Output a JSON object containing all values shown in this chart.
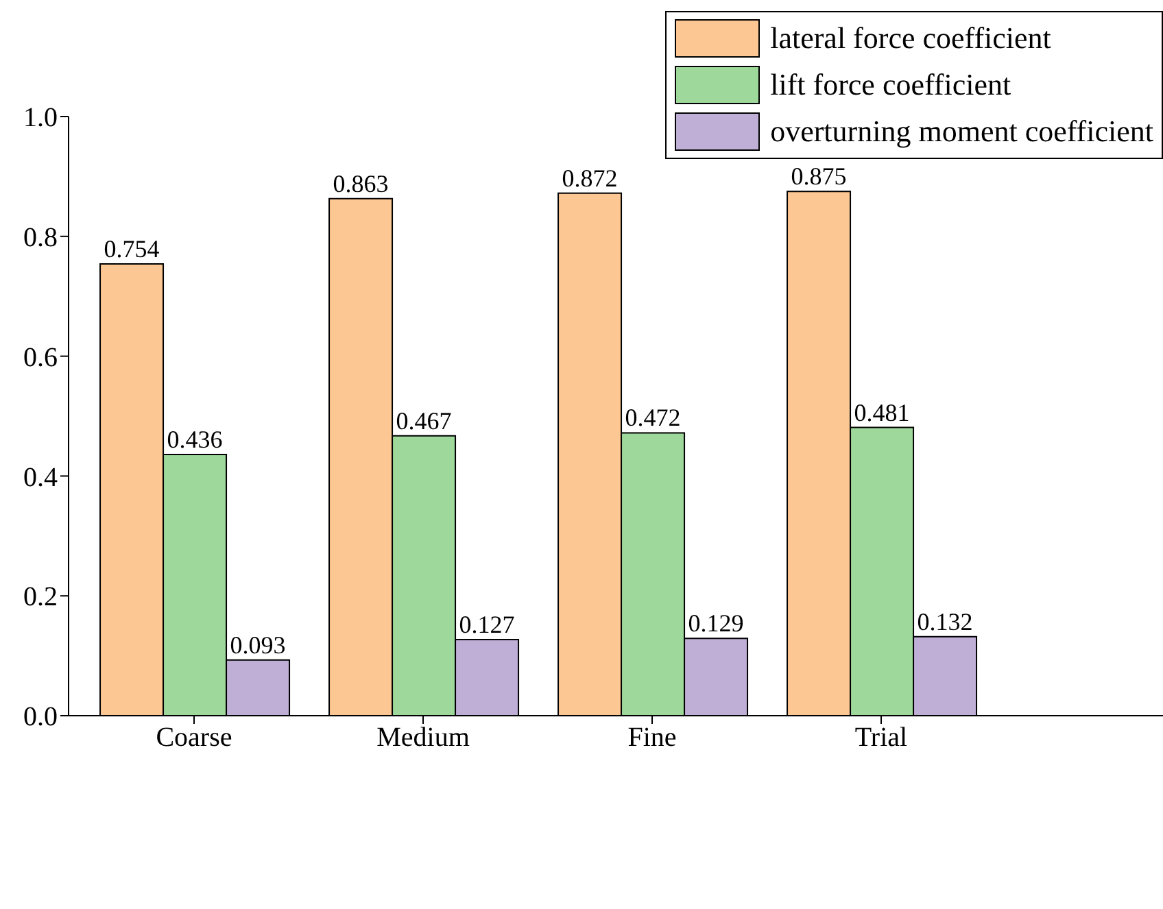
{
  "chart_data": {
    "type": "bar",
    "categories": [
      "Coarse",
      "Medium",
      "Fine",
      "Trial"
    ],
    "series": [
      {
        "name": "lateral force coefficient",
        "color": "#fcc793",
        "values": [
          0.754,
          0.863,
          0.872,
          0.875
        ]
      },
      {
        "name": "lift force coefficient",
        "color": "#9fd89b",
        "values": [
          0.436,
          0.467,
          0.472,
          0.481
        ]
      },
      {
        "name": "overturning moment coefficient",
        "color": "#bfaed6",
        "values": [
          0.093,
          0.127,
          0.129,
          0.132
        ]
      }
    ],
    "ylim": [
      0,
      1
    ],
    "yticks": [
      {
        "value": 0,
        "label": "0.0"
      },
      {
        "value": 0.2,
        "label": "0.2"
      },
      {
        "value": 0.4,
        "label": "0.4"
      },
      {
        "value": 0.6,
        "label": "0.6"
      },
      {
        "value": 0.8,
        "label": "0.8"
      },
      {
        "value": 1,
        "label": "1.0"
      }
    ],
    "data_labels": true,
    "grid": false,
    "legend": "top right"
  }
}
